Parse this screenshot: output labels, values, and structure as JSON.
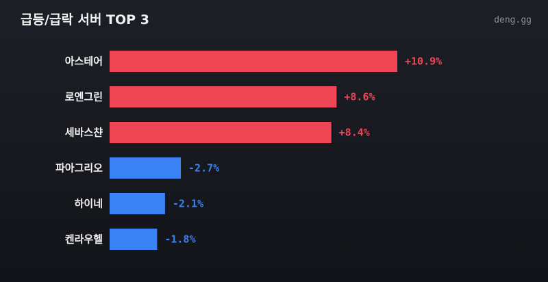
{
  "header": {
    "title": "급등/급락 서버 TOP 3",
    "brand": "deng.gg"
  },
  "colors": {
    "positive": "#ef4655",
    "negative": "#3a82f6"
  },
  "chart_data": {
    "type": "bar",
    "orientation": "horizontal",
    "title": "급등/급락 서버 TOP 3",
    "categories": [
      "아스테어",
      "로엔그린",
      "세바스챤",
      "파아그리오",
      "하이네",
      "켄라우헬"
    ],
    "values": [
      10.9,
      8.6,
      8.4,
      -2.7,
      -2.1,
      -1.8
    ],
    "value_labels": [
      "+10.9%",
      "+8.6%",
      "+8.4%",
      "-2.7%",
      "-2.1%",
      "-1.8%"
    ],
    "unit": "%",
    "xlabel": "",
    "ylabel": "",
    "grid": false,
    "legend": "none"
  }
}
